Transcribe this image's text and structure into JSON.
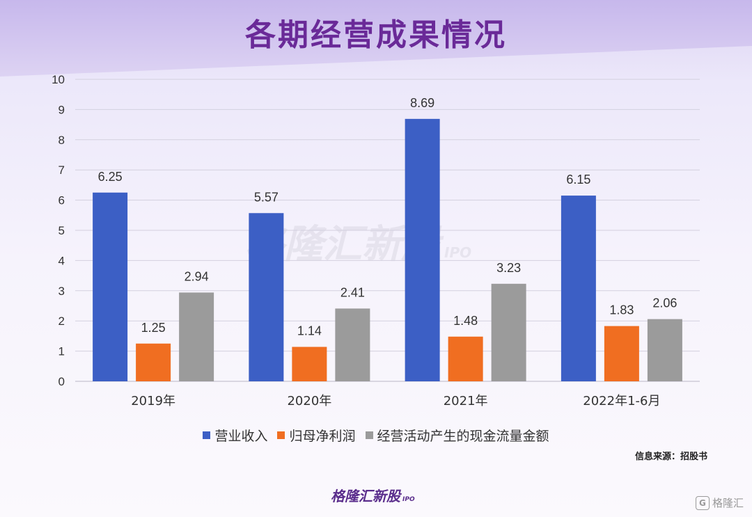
{
  "title": "各期经营成果情况",
  "source_note": "信息来源：招股书",
  "brand": {
    "name": "格隆汇新股",
    "suffix": "IPO"
  },
  "corner_logo": {
    "icon": "g-logo-icon",
    "text": "格隆汇"
  },
  "colors": {
    "title": "#6a2a98",
    "revenue": "#3c5fc5",
    "profit": "#f06e21",
    "cashflow": "#9b9b9b"
  },
  "chart_data": {
    "type": "bar",
    "categories": [
      "2019年",
      "2020年",
      "2021年",
      "2022年1-6月"
    ],
    "series": [
      {
        "name": "营业收入",
        "values": [
          6.25,
          5.57,
          8.69,
          6.15
        ]
      },
      {
        "name": "归母净利润",
        "values": [
          1.25,
          1.14,
          1.48,
          1.83
        ]
      },
      {
        "name": "经营活动产生的现金流量金额",
        "values": [
          2.94,
          2.41,
          3.23,
          2.06
        ]
      }
    ],
    "ylim": [
      0,
      10
    ],
    "yticks": [
      0,
      1,
      2,
      3,
      4,
      5,
      6,
      7,
      8,
      9,
      10
    ],
    "grid": true,
    "legend": "bottom",
    "data_labels": true,
    "xlabel": "",
    "ylabel": ""
  }
}
